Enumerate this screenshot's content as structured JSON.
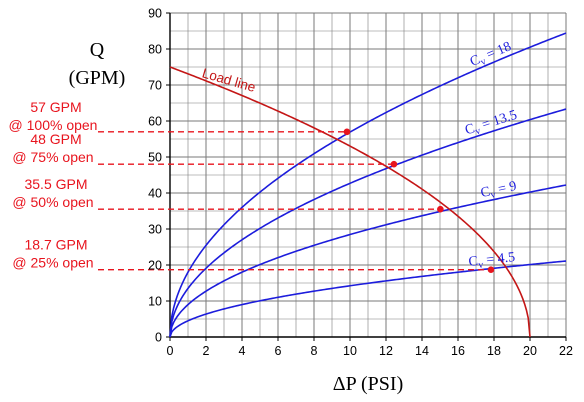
{
  "chart_data": {
    "type": "line",
    "xlabel": "ΔP (PSI)",
    "ylabel_line1": "Q",
    "ylabel_line2": "(GPM)",
    "xlim": [
      0,
      22
    ],
    "ylim": [
      0,
      90
    ],
    "x_ticks": [
      0,
      2,
      4,
      6,
      8,
      10,
      12,
      14,
      16,
      18,
      20,
      22
    ],
    "y_ticks": [
      0,
      10,
      20,
      30,
      40,
      50,
      60,
      70,
      80,
      90
    ],
    "grid": true,
    "valve_curves": [
      {
        "label_prefix": "C",
        "label_sub": "v",
        "label_suffix": " = 18",
        "cv": 18,
        "color": "#1c1cdc"
      },
      {
        "label_prefix": "C",
        "label_sub": "v",
        "label_suffix": " = 13.5",
        "cv": 13.5,
        "color": "#1c1cdc"
      },
      {
        "label_prefix": "C",
        "label_sub": "v",
        "label_suffix": " = 9",
        "cv": 9,
        "color": "#1c1cdc"
      },
      {
        "label_prefix": "C",
        "label_sub": "v",
        "label_suffix": " = 4.5",
        "cv": 4.5,
        "color": "#1c1cdc"
      }
    ],
    "load_line": {
      "label": "Load line",
      "q_at_zero": 75,
      "dp_at_zero_flow": 20,
      "color": "#c41616"
    },
    "operating_points": [
      {
        "dp": 9.83,
        "q": 57,
        "line1": "57 GPM",
        "line2": "@ 100% open"
      },
      {
        "dp": 12.44,
        "q": 48,
        "line1": "48 GPM",
        "line2": "@ 75% open"
      },
      {
        "dp": 15.02,
        "q": 35.5,
        "line1": "35.5 GPM",
        "line2": "@ 50% open"
      },
      {
        "dp": 17.83,
        "q": 18.7,
        "line1": "18.7 GPM",
        "line2": "@ 25% open"
      }
    ],
    "annotation_color": "#e8141e"
  }
}
